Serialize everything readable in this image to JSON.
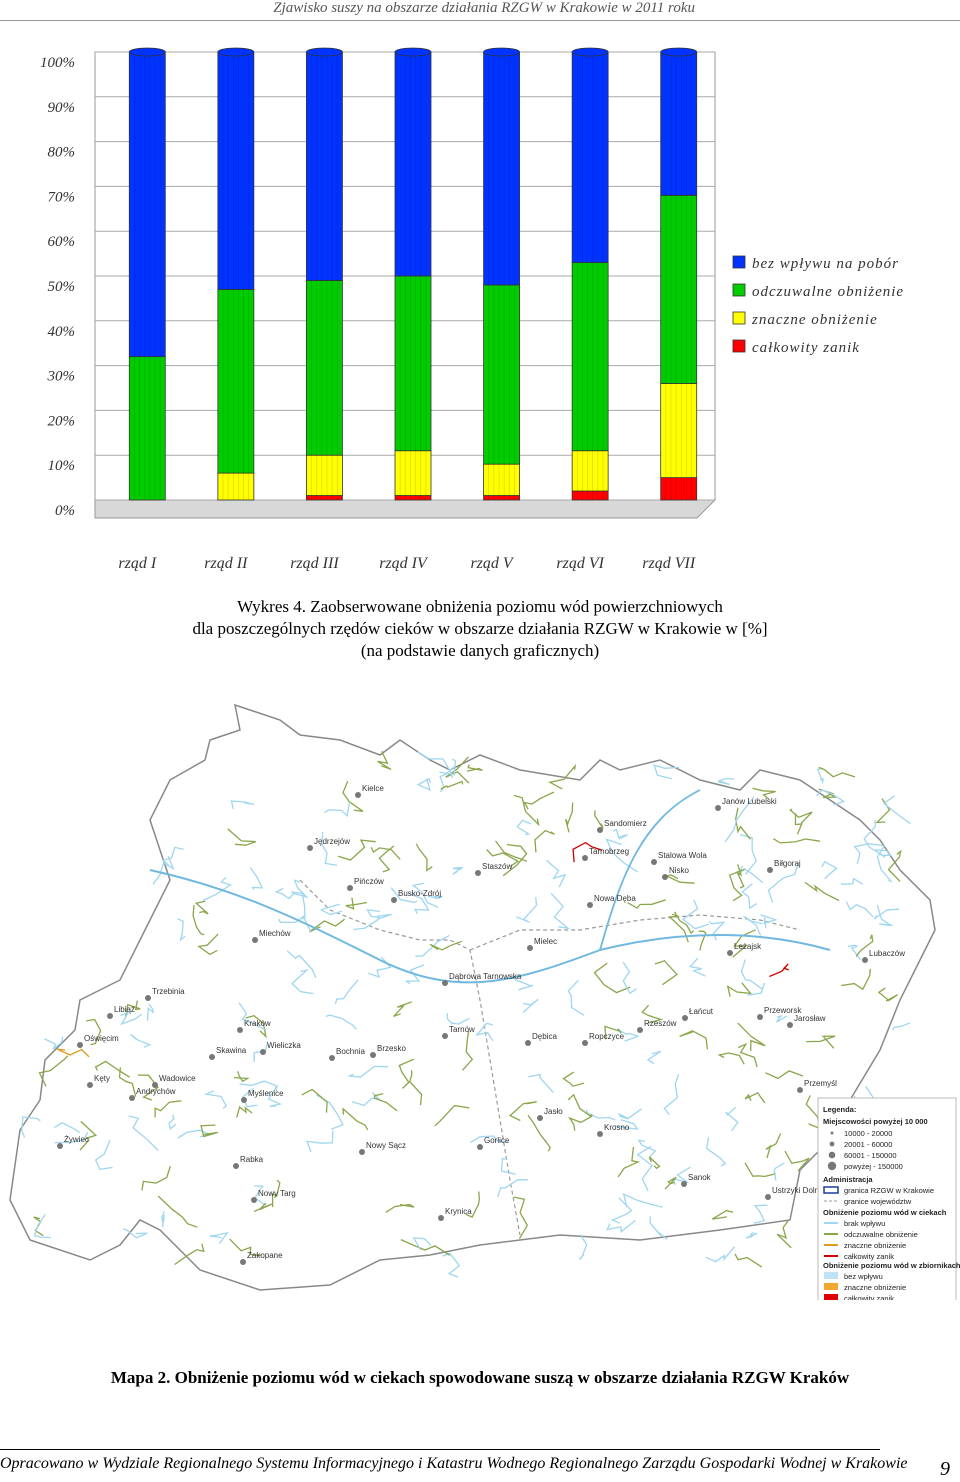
{
  "header": {
    "title": "Zjawisko suszy na obszarze działania RZGW w Krakowie w 2011 roku"
  },
  "chart_data": {
    "type": "bar",
    "stacked": true,
    "percent": true,
    "categories": [
      "rząd I",
      "rząd II",
      "rząd III",
      "rząd IV",
      "rząd V",
      "rząd VI",
      "rząd VII"
    ],
    "series": [
      {
        "name": "całkowity zanik",
        "color": "#ff0000",
        "values": [
          0,
          0,
          1,
          1,
          1,
          2,
          5
        ]
      },
      {
        "name": "znaczne obniżenie",
        "color": "#ffff00",
        "values": [
          0,
          6,
          9,
          10,
          7,
          9,
          21
        ]
      },
      {
        "name": "odczuwalne obniżenie",
        "color": "#00cc00",
        "values": [
          32,
          41,
          39,
          39,
          40,
          42,
          42
        ]
      },
      {
        "name": "bez wpływu na pobór",
        "color": "#0033ff",
        "values": [
          68,
          53,
          51,
          50,
          52,
          47,
          32
        ]
      }
    ],
    "legend_order": [
      "bez wpływu na pobór",
      "odczuwalne obniżenie",
      "znaczne obniżenie",
      "całkowity zanik"
    ],
    "yticks": [
      "0%",
      "10%",
      "20%",
      "30%",
      "40%",
      "50%",
      "60%",
      "70%",
      "80%",
      "90%",
      "100%"
    ],
    "ylim": [
      0,
      100
    ],
    "legend_position": "right"
  },
  "chart_caption": {
    "line1": "Wykres 4. Zaobserwowane obniżenia poziomu wód powierzchniowych",
    "line2": "dla poszczególnych rzędów cieków w obszarze działania RZGW w Krakowie w [%]",
    "line3": "(na podstawie danych graficznych)"
  },
  "map": {
    "cities": [
      "Kielce",
      "Janów Lubelski",
      "Sandomierz",
      "Jędrzejów",
      "Tarnobrzeg",
      "Stalowa Wola",
      "Staszów",
      "Biłgoraj",
      "Pińczów",
      "Nisko",
      "Busko-Zdrój",
      "Nowa Dęba",
      "Miechów",
      "Mielec",
      "Leżajsk",
      "Dąbrowa Tarnowska",
      "Lubaczów",
      "Trzebinia",
      "Łańcut",
      "Przeworsk",
      "Libiąż",
      "Kraków",
      "Tarnów",
      "Dębica",
      "Ropczyce",
      "Rzeszów",
      "Jarosław",
      "Oświęcim",
      "Wieliczka",
      "Skawina",
      "Bochnia",
      "Brzesko",
      "Kęty",
      "Wadowice",
      "Andrychów",
      "Myślenice",
      "Przemyśl",
      "Jasło",
      "Żywiec",
      "Gorlice",
      "Krosno",
      "Nowy Sącz",
      "Rabka",
      "Sanok",
      "Nowy Targ",
      "Krynica",
      "Ustrzyki Dolne",
      "Zakopane"
    ],
    "legend": {
      "title": "Legenda:",
      "cities_title": "Miejscowości powyżej 10 000",
      "city_sizes": [
        "10000 - 20000",
        "20001 - 60000",
        "60001 - 150000",
        "powyżej - 150000"
      ],
      "admin_title": "Administracja",
      "admin_items": [
        "granica RZGW w Krakowie",
        "granice województw"
      ],
      "rivers_title": "Obniżenie poziomu wód w ciekach",
      "river_items": [
        "brak wpływu",
        "odczuwalne obniżenie",
        "znaczne obniżenie",
        "całkowity zanik"
      ],
      "res_title": "Obniżenie poziomu wód w zbiornikach",
      "res_items": [
        "bez wpływu",
        "znaczne obniżenie",
        "całkowity zanik"
      ]
    }
  },
  "map_caption": "Mapa 2. Obniżenie poziomu wód w ciekach spowodowane suszą w obszarze działania RZGW Kraków",
  "footer": {
    "text": "Opracowano w Wydziale Regionalnego Systemu Informacyjnego i Katastru Wodnego Regionalnego Zarządu Gospodarki Wodnej w Krakowie",
    "page": "9"
  }
}
